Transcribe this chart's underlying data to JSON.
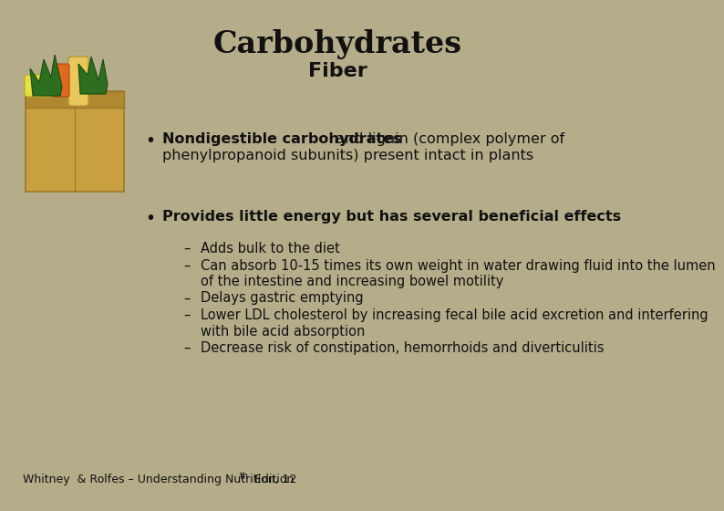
{
  "title": "Carbohydrates",
  "subtitle": "Fiber",
  "background_color": "#b5ad8a",
  "title_color": "#1a1a1a",
  "title_fontsize": 24,
  "subtitle_fontsize": 16,
  "bullet1_bold": "Nondigestible carbohydrates",
  "bullet1_normal": " and lignin (complex polymer of",
  "bullet1_line2": "phenylpropanoid subunits) present intact in plants",
  "bullet2": "Provides little energy but has several beneficial effects",
  "sub_bullets": [
    "Adds bulk to the diet",
    "Can absorb 10-15 times its own weight in water drawing fluid into the lumen\nof the intestine and increasing bowel motility",
    "Delays gastric emptying",
    "Lower LDL cholesterol by increasing fecal bile acid excretion and interfering\nwith bile acid absorption",
    "Decrease risk of constipation, hemorrhoids and diverticulitis"
  ],
  "footer": "Whitney  & Rolfes – Understanding Nutrition, 12",
  "footer_super": "th",
  "footer_rest": "  Edition",
  "text_color": "#111111",
  "body_fontsize": 11.5,
  "sub_fontsize": 10.5,
  "footer_fontsize": 9
}
